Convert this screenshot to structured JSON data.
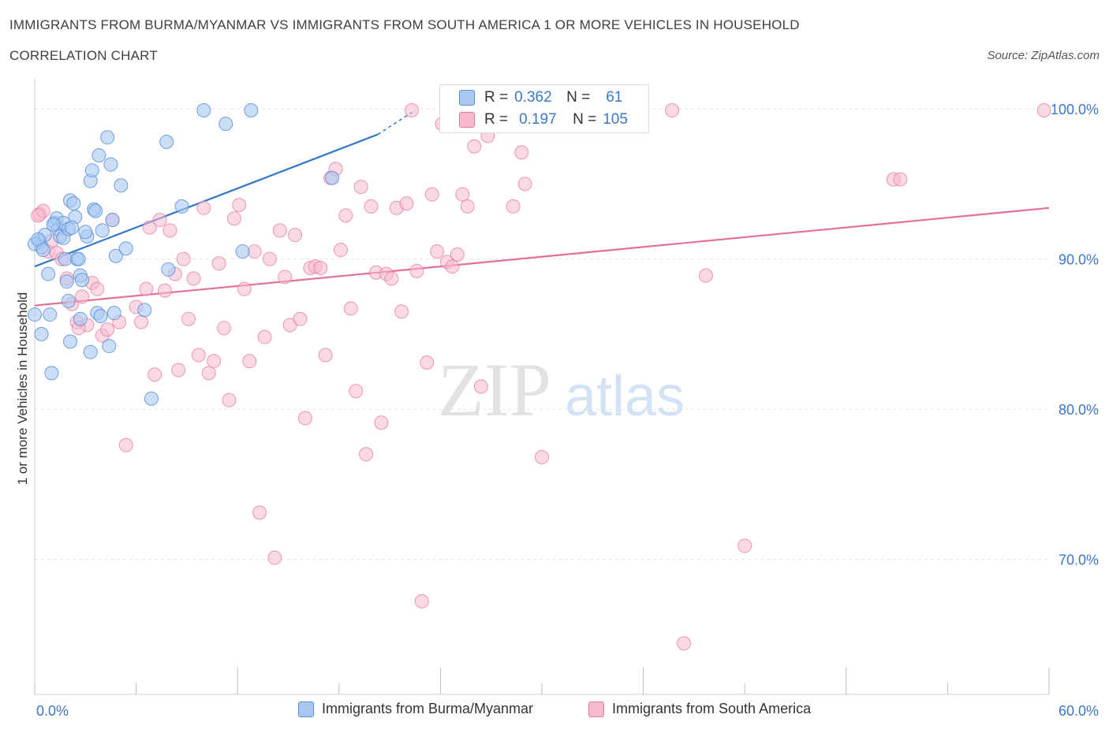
{
  "title": "IMMIGRANTS FROM BURMA/MYANMAR VS IMMIGRANTS FROM SOUTH AMERICA 1 OR MORE VEHICLES IN HOUSEHOLD",
  "subtitle": "CORRELATION CHART",
  "source": "Source: ZipAtlas.com",
  "watermark": {
    "zip": "ZIP",
    "atlas": "atlas"
  },
  "colors": {
    "blue_fill": "#a8c8f2",
    "blue_stroke": "#5b8fd6",
    "blue_line": "#2f74c9",
    "pink_fill": "#f6b9cd",
    "pink_stroke": "#e6809f",
    "pink_line": "#e56f97",
    "tick_label": "#3a78c9",
    "grid": "#e3e3e3"
  },
  "stats": [
    {
      "r_label": "R =",
      "r_value": "0.362",
      "n_label": "N =",
      "n_value": "61"
    },
    {
      "r_label": "R =",
      "r_value": "0.197",
      "n_label": "N =",
      "n_value": "105"
    }
  ],
  "chart_data": {
    "type": "scatter",
    "title": "IMMIGRANTS FROM BURMA/MYANMAR VS IMMIGRANTS FROM SOUTH AMERICA 1 OR MORE VEHICLES IN HOUSEHOLD",
    "xlabel": "",
    "ylabel": "1 or more Vehicles in Household",
    "x_range": [
      0,
      60
    ],
    "y_range": [
      61,
      102
    ],
    "x_tick_labels": [
      "0.0%",
      "60.0%"
    ],
    "y_ticks": [
      100,
      90,
      80,
      70
    ],
    "y_tick_labels": [
      "100.0%",
      "90.0%",
      "80.0%",
      "70.0%"
    ],
    "grid": true,
    "legend": [
      "Immigrants from Burma/Myanmar",
      "Immigrants from South America"
    ],
    "series": [
      {
        "name": "Immigrants from Burma/Myanmar",
        "trend": {
          "x0": 0.0,
          "y0": 89.5,
          "x1": 20.3,
          "y1": 98.3,
          "x_dash_end": 22.5,
          "y_dash_end": 99.9
        },
        "points": [
          [
            0.0,
            86.3
          ],
          [
            0.3,
            91.2
          ],
          [
            0.4,
            90.8
          ],
          [
            0.4,
            85.0
          ],
          [
            0.6,
            91.6
          ],
          [
            0.8,
            89.0
          ],
          [
            0.9,
            86.3
          ],
          [
            1.0,
            82.4
          ],
          [
            1.2,
            92.4
          ],
          [
            1.3,
            92.7
          ],
          [
            1.4,
            92.0
          ],
          [
            1.5,
            91.5
          ],
          [
            1.7,
            92.4
          ],
          [
            1.7,
            91.4
          ],
          [
            1.8,
            90.0
          ],
          [
            2.0,
            92.0
          ],
          [
            2.0,
            87.2
          ],
          [
            2.1,
            93.9
          ],
          [
            2.1,
            84.5
          ],
          [
            2.3,
            93.7
          ],
          [
            2.4,
            92.8
          ],
          [
            2.5,
            90.0
          ],
          [
            2.6,
            90.0
          ],
          [
            2.7,
            88.9
          ],
          [
            2.7,
            86.0
          ],
          [
            2.8,
            88.6
          ],
          [
            3.1,
            91.5
          ],
          [
            3.3,
            83.8
          ],
          [
            3.3,
            95.2
          ],
          [
            3.4,
            95.9
          ],
          [
            3.5,
            93.3
          ],
          [
            3.6,
            93.2
          ],
          [
            3.7,
            86.4
          ],
          [
            3.8,
            96.9
          ],
          [
            3.9,
            86.2
          ],
          [
            4.0,
            91.9
          ],
          [
            4.3,
            98.1
          ],
          [
            4.4,
            84.2
          ],
          [
            4.5,
            96.3
          ],
          [
            4.6,
            92.6
          ],
          [
            4.7,
            86.4
          ],
          [
            4.8,
            90.2
          ],
          [
            5.1,
            94.9
          ],
          [
            5.4,
            90.7
          ],
          [
            6.5,
            86.6
          ],
          [
            6.9,
            80.7
          ],
          [
            7.8,
            97.8
          ],
          [
            7.9,
            89.3
          ],
          [
            8.7,
            93.5
          ],
          [
            10.0,
            99.9
          ],
          [
            11.3,
            99.0
          ],
          [
            12.3,
            90.5
          ],
          [
            12.8,
            99.9
          ],
          [
            17.6,
            95.4
          ],
          [
            0.0,
            91.0
          ],
          [
            0.2,
            91.3
          ],
          [
            1.1,
            92.3
          ],
          [
            1.9,
            88.5
          ],
          [
            2.2,
            92.1
          ],
          [
            3.0,
            91.8
          ],
          [
            0.5,
            90.6
          ]
        ]
      },
      {
        "name": "Immigrants from South America",
        "trend": {
          "x0": 0.0,
          "y0": 86.9,
          "x1": 60.0,
          "y1": 93.4
        },
        "points": [
          [
            0.3,
            93.0
          ],
          [
            0.5,
            93.2
          ],
          [
            0.8,
            90.5
          ],
          [
            1.0,
            91.2
          ],
          [
            1.3,
            90.4
          ],
          [
            1.6,
            90.0
          ],
          [
            1.9,
            88.7
          ],
          [
            2.2,
            87.0
          ],
          [
            2.5,
            85.8
          ],
          [
            2.8,
            87.5
          ],
          [
            3.1,
            85.6
          ],
          [
            3.4,
            88.4
          ],
          [
            3.7,
            88.0
          ],
          [
            4.0,
            84.9
          ],
          [
            4.3,
            85.3
          ],
          [
            4.6,
            92.6
          ],
          [
            5.0,
            85.8
          ],
          [
            5.4,
            77.6
          ],
          [
            6.0,
            86.8
          ],
          [
            6.3,
            85.8
          ],
          [
            6.6,
            88.0
          ],
          [
            6.8,
            92.1
          ],
          [
            7.1,
            82.3
          ],
          [
            7.4,
            92.6
          ],
          [
            7.7,
            87.9
          ],
          [
            8.0,
            91.9
          ],
          [
            8.3,
            89.0
          ],
          [
            8.5,
            82.6
          ],
          [
            8.8,
            90.0
          ],
          [
            9.1,
            86.0
          ],
          [
            9.4,
            88.7
          ],
          [
            9.7,
            83.6
          ],
          [
            10.0,
            93.4
          ],
          [
            10.3,
            82.4
          ],
          [
            10.6,
            83.2
          ],
          [
            10.9,
            89.7
          ],
          [
            11.2,
            85.4
          ],
          [
            11.5,
            80.6
          ],
          [
            11.8,
            92.7
          ],
          [
            12.1,
            93.6
          ],
          [
            12.4,
            88.0
          ],
          [
            12.7,
            83.2
          ],
          [
            13.0,
            90.5
          ],
          [
            13.3,
            73.1
          ],
          [
            13.6,
            84.8
          ],
          [
            13.9,
            90.0
          ],
          [
            14.2,
            70.1
          ],
          [
            14.5,
            91.9
          ],
          [
            14.8,
            88.8
          ],
          [
            15.1,
            85.6
          ],
          [
            15.4,
            91.6
          ],
          [
            15.7,
            86.0
          ],
          [
            16.0,
            79.4
          ],
          [
            16.3,
            89.4
          ],
          [
            16.6,
            89.5
          ],
          [
            16.9,
            89.4
          ],
          [
            17.2,
            83.6
          ],
          [
            17.5,
            95.4
          ],
          [
            17.8,
            96.0
          ],
          [
            18.1,
            90.6
          ],
          [
            18.4,
            92.9
          ],
          [
            18.7,
            86.7
          ],
          [
            19.0,
            81.2
          ],
          [
            19.3,
            94.8
          ],
          [
            19.6,
            77.0
          ],
          [
            19.9,
            93.5
          ],
          [
            20.2,
            89.1
          ],
          [
            20.5,
            79.1
          ],
          [
            20.8,
            89.0
          ],
          [
            21.1,
            88.7
          ],
          [
            21.4,
            93.4
          ],
          [
            21.7,
            86.5
          ],
          [
            22.0,
            93.7
          ],
          [
            22.3,
            99.9
          ],
          [
            22.6,
            89.2
          ],
          [
            22.9,
            67.2
          ],
          [
            23.2,
            83.1
          ],
          [
            23.5,
            94.3
          ],
          [
            23.8,
            90.5
          ],
          [
            24.1,
            99.0
          ],
          [
            24.4,
            89.8
          ],
          [
            24.7,
            89.5
          ],
          [
            25.0,
            90.3
          ],
          [
            25.3,
            94.3
          ],
          [
            25.6,
            93.5
          ],
          [
            26.0,
            97.5
          ],
          [
            26.4,
            81.5
          ],
          [
            26.8,
            98.2
          ],
          [
            27.5,
            99.8
          ],
          [
            28.3,
            93.5
          ],
          [
            28.8,
            97.1
          ],
          [
            29.0,
            95.0
          ],
          [
            30.0,
            76.8
          ],
          [
            30.4,
            98.9
          ],
          [
            32.1,
            99.9
          ],
          [
            35.5,
            99.9
          ],
          [
            37.7,
            99.9
          ],
          [
            38.4,
            64.4
          ],
          [
            39.7,
            88.9
          ],
          [
            42.0,
            70.9
          ],
          [
            50.8,
            95.3
          ],
          [
            51.2,
            95.3
          ],
          [
            59.7,
            99.9
          ],
          [
            0.2,
            92.9
          ],
          [
            2.6,
            85.4
          ]
        ]
      }
    ]
  }
}
